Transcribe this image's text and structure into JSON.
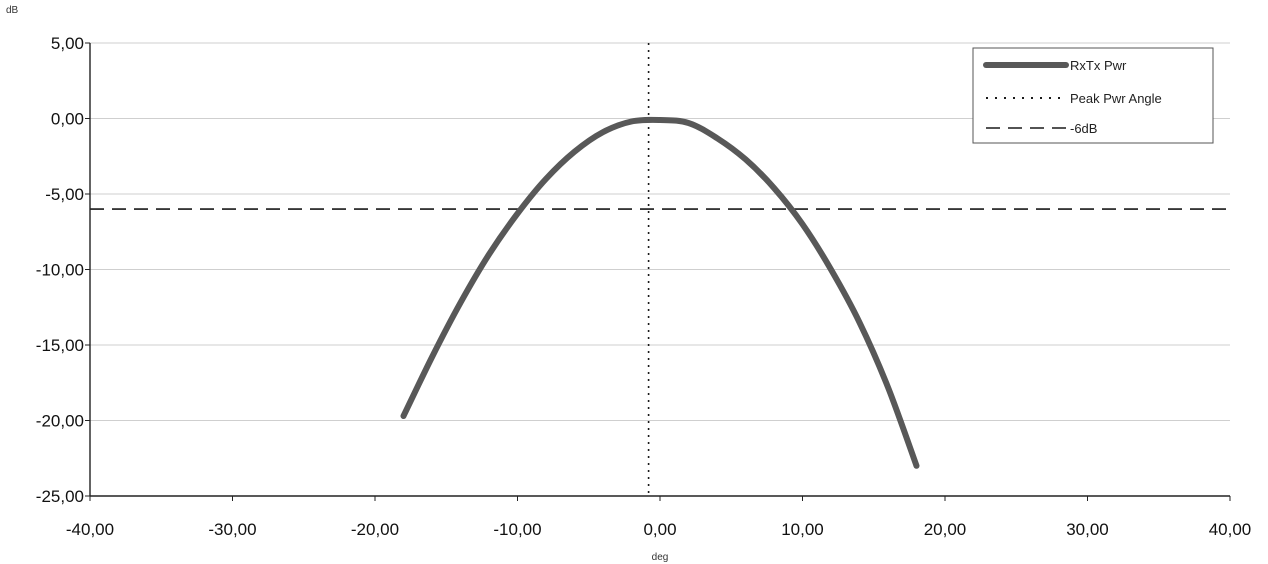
{
  "chart_data": {
    "type": "line",
    "ylabel": "dB",
    "xlabel": "deg",
    "xlim": [
      -40,
      40
    ],
    "ylim": [
      -25,
      5
    ],
    "x_ticks": [
      "-40,00",
      "-30,00",
      "-20,00",
      "-10,00",
      "0,00",
      "10,00",
      "20,00",
      "30,00",
      "40,00"
    ],
    "y_ticks": [
      "5,00",
      "0,00",
      "-5,00",
      "-10,00",
      "-15,00",
      "-20,00",
      "-25,00"
    ],
    "grid": "horizontal",
    "legend_position": "top-right",
    "series": [
      {
        "name": "RxTx Pwr",
        "style": "solid-thick",
        "x": [
          -18,
          -16,
          -14,
          -12,
          -10,
          -8,
          -6,
          -4,
          -2,
          0,
          2,
          4,
          6,
          8,
          10,
          12,
          14,
          16,
          18
        ],
        "y": [
          -19.7,
          -15.8,
          -12.2,
          -9.0,
          -6.3,
          -4.0,
          -2.2,
          -0.9,
          -0.2,
          -0.1,
          -0.3,
          -1.3,
          -2.7,
          -4.6,
          -7.0,
          -10.0,
          -13.5,
          -17.8,
          -23.0
        ]
      },
      {
        "name": "Peak Pwr Angle",
        "style": "dotted",
        "x": [
          -0.8,
          -0.8
        ],
        "y": [
          5,
          -25
        ]
      },
      {
        "name": "-6dB",
        "style": "dashed",
        "x": [
          -40,
          40
        ],
        "y": [
          -6.0,
          -6.0
        ]
      }
    ],
    "colors": {
      "curve": "#585858",
      "markers": "#1a1a1a",
      "grid": "#cfcfcf"
    }
  }
}
